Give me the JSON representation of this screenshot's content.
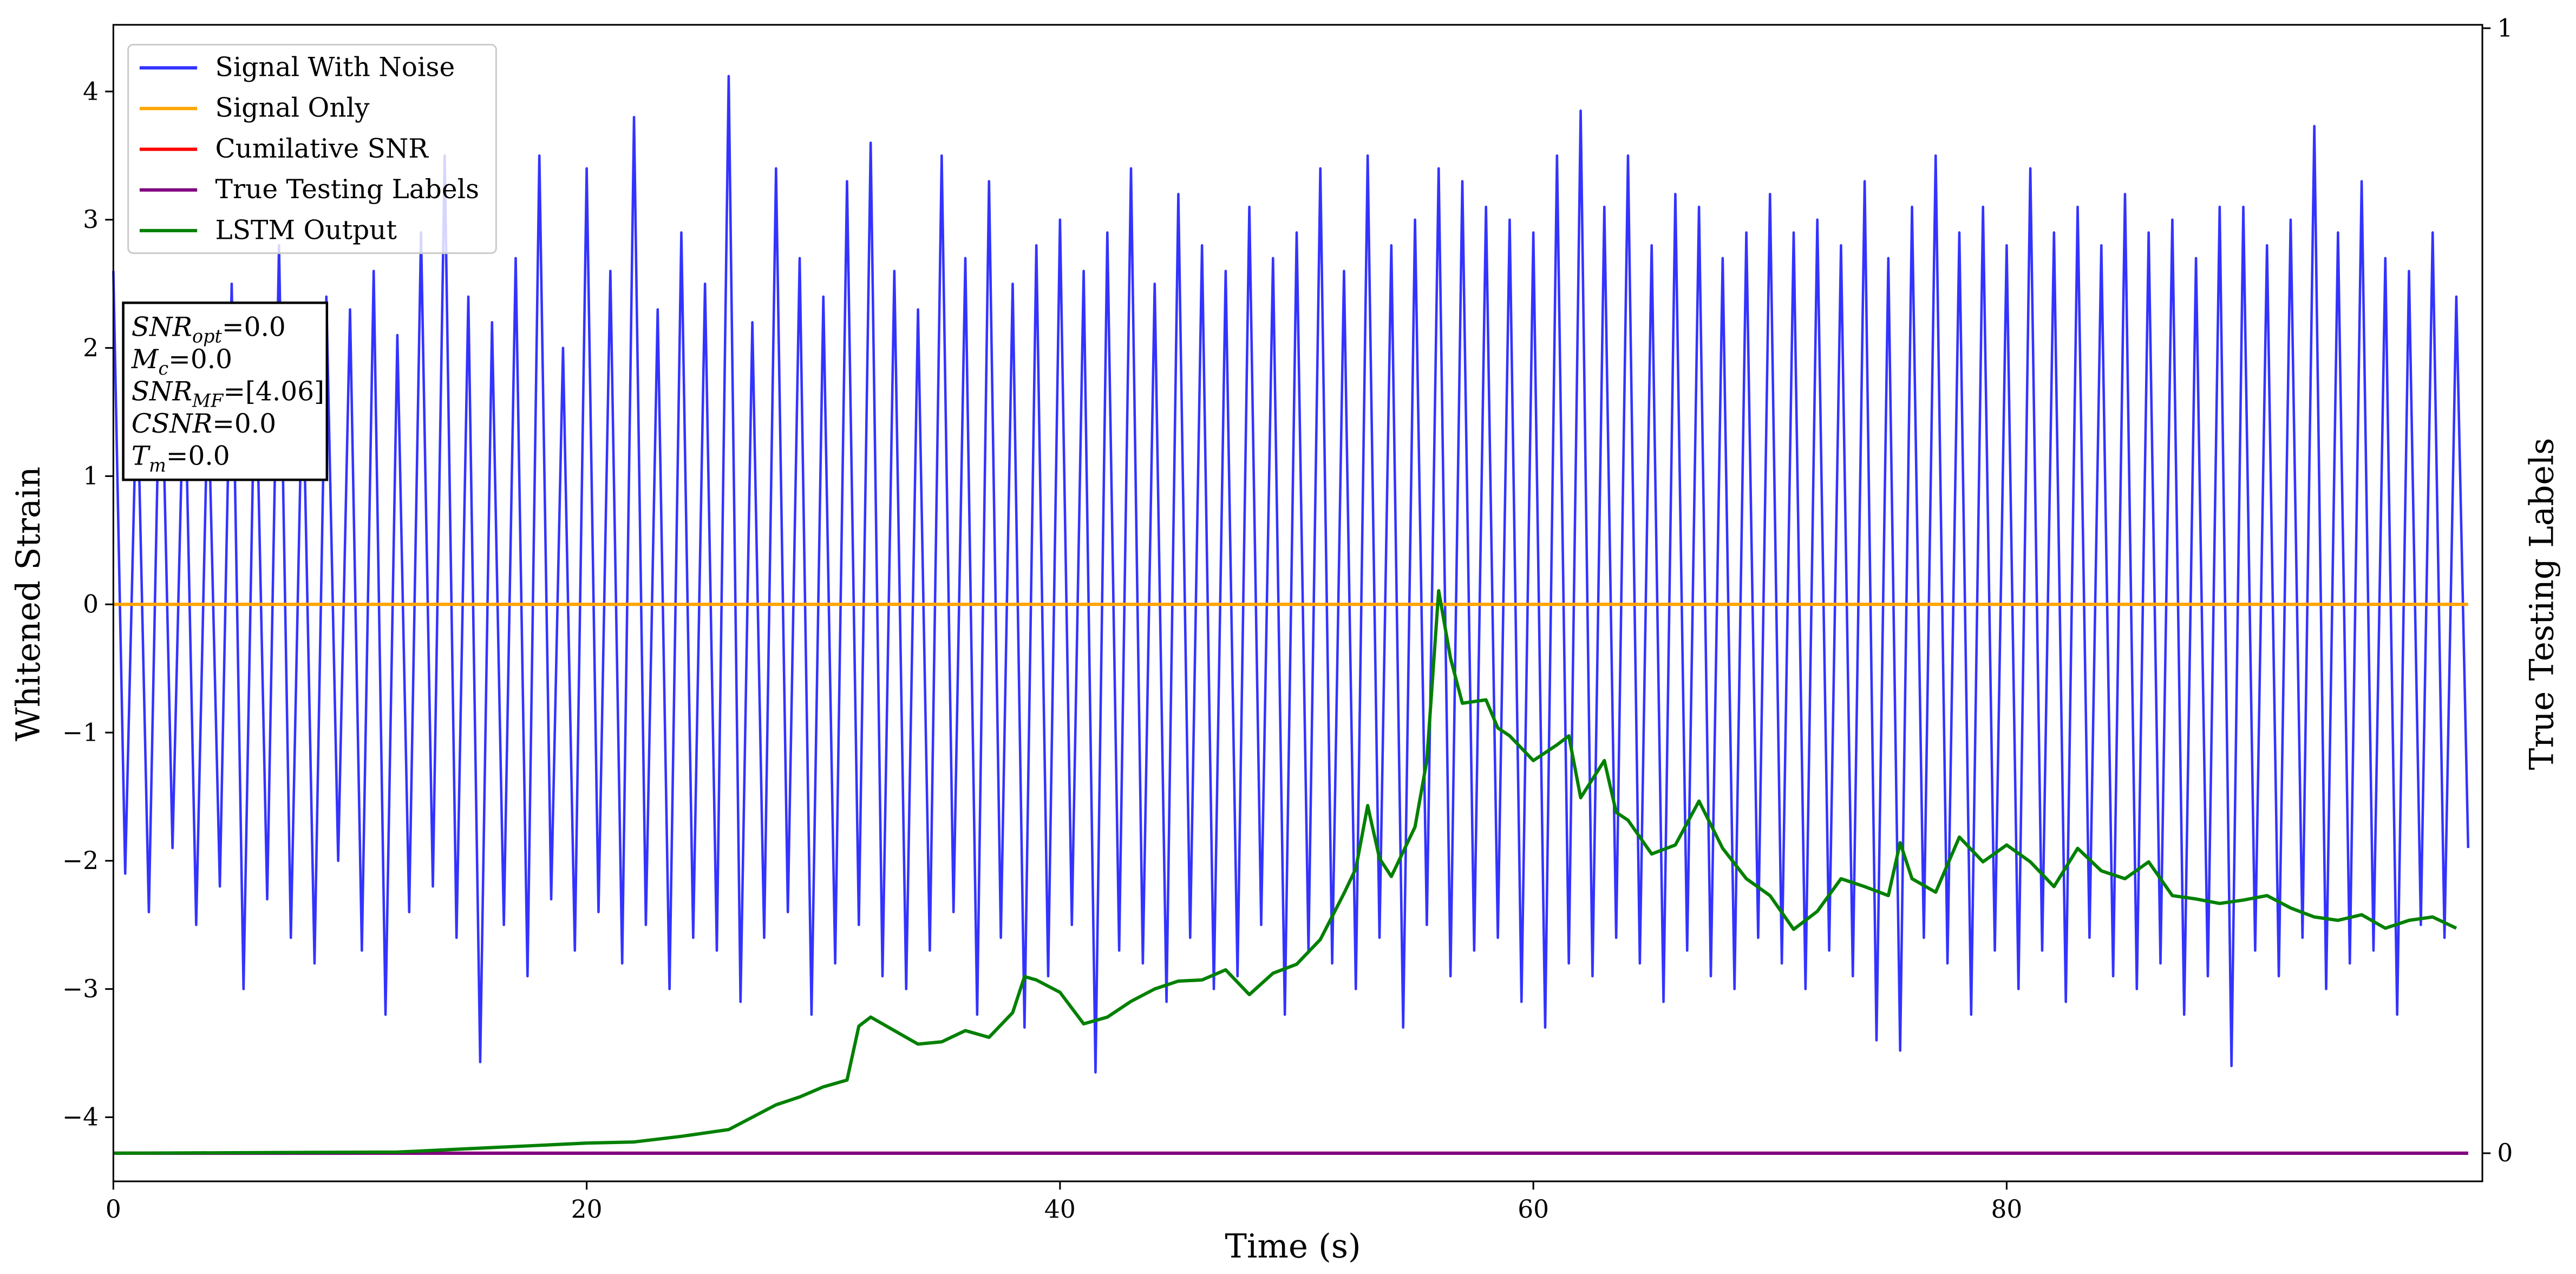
{
  "chart_data": {
    "type": "line",
    "xlabel": "Time (s)",
    "ylabel": "Whitened Strain",
    "y2label": "True Testing Labels",
    "xlim": [
      0,
      100.1
    ],
    "ylim": [
      -4.5,
      4.52
    ],
    "y2lim": [
      -0.025,
      1.003
    ],
    "xticks": [
      0,
      20,
      40,
      60,
      80
    ],
    "yticks": [
      {
        "value": -4,
        "label": "−4"
      },
      {
        "value": -3,
        "label": "−3"
      },
      {
        "value": -2,
        "label": "−2"
      },
      {
        "value": -1,
        "label": "−1"
      },
      0,
      1,
      2,
      3,
      4
    ],
    "y2ticks": [
      0,
      1
    ],
    "legend": "upper left",
    "annotation": [
      {
        "main": "SNR",
        "sub": "opt",
        "rest": "=0.0"
      },
      {
        "main": "M",
        "sub": "c",
        "rest": "=0.0"
      },
      {
        "main": "SNR",
        "sub": "MF",
        "rest": "=[4.06]"
      },
      {
        "main": "CSNR",
        "rest": "=0.0"
      },
      {
        "main": "T",
        "sub": "m",
        "rest": "=0.0"
      }
    ],
    "series": [
      {
        "name": "Signal With Noise",
        "color": "#3333ff",
        "x": [
          0,
          0.5,
          1,
          1.5,
          2,
          2.5,
          3,
          3.5,
          4,
          4.5,
          5,
          5.5,
          6,
          6.5,
          7,
          7.5,
          8,
          8.5,
          9,
          9.5,
          10,
          10.5,
          11,
          11.5,
          12,
          12.5,
          13,
          13.5,
          14,
          14.5,
          15,
          15.5,
          16,
          16.5,
          17,
          17.5,
          18,
          18.5,
          19,
          19.5,
          20,
          20.5,
          21,
          21.5,
          22,
          22.5,
          23,
          23.5,
          24,
          24.5,
          25,
          25.5,
          26,
          26.5,
          27,
          27.5,
          28,
          28.5,
          29,
          29.5,
          30,
          30.5,
          31,
          31.5,
          32,
          32.5,
          33,
          33.5,
          34,
          34.5,
          35,
          35.5,
          36,
          36.5,
          37,
          37.5,
          38,
          38.5,
          39,
          39.5,
          40,
          40.5,
          41,
          41.5,
          42,
          42.5,
          43,
          43.5,
          44,
          44.5,
          45,
          45.5,
          46,
          46.5,
          47,
          47.5,
          48,
          48.5,
          49,
          49.5,
          50,
          50.5,
          51,
          51.5,
          52,
          52.5,
          53,
          53.5,
          54,
          54.5,
          55,
          55.5,
          56,
          56.5,
          57,
          57.5,
          58,
          58.5,
          59,
          59.5,
          60,
          60.5,
          61,
          61.5,
          62,
          62.5,
          63,
          63.5,
          64,
          64.5,
          65,
          65.5,
          66,
          66.5,
          67,
          67.5,
          68,
          68.5,
          69,
          69.5,
          70,
          70.5,
          71,
          71.5,
          72,
          72.5,
          73,
          73.5,
          74,
          74.5,
          75,
          75.5,
          76,
          76.5,
          77,
          77.5,
          78,
          78.5,
          79,
          79.5,
          80,
          80.5,
          81,
          81.5,
          82,
          82.5,
          83,
          83.5,
          84,
          84.5,
          85,
          85.5,
          86,
          86.5,
          87,
          87.5,
          88,
          88.5,
          89,
          89.5,
          90,
          90.5,
          91,
          91.5,
          92,
          92.5,
          93,
          93.5,
          94,
          94.5,
          95,
          95.5,
          96,
          96.5,
          97,
          97.5,
          98,
          98.5,
          99,
          99.5
        ],
        "values": [
          2.6,
          -2.1,
          1.8,
          -2.4,
          2.3,
          -1.9,
          2.0,
          -2.5,
          1.7,
          -2.2,
          2.5,
          -3.0,
          2.1,
          -2.3,
          2.8,
          -2.6,
          1.9,
          -2.8,
          2.4,
          -2.0,
          2.3,
          -2.7,
          2.6,
          -3.2,
          2.1,
          -2.4,
          2.9,
          -2.2,
          3.5,
          -2.6,
          2.4,
          -3.57,
          2.2,
          -2.5,
          2.7,
          -2.9,
          3.5,
          -2.3,
          2.0,
          -2.7,
          3.4,
          -2.4,
          2.6,
          -2.8,
          3.8,
          -2.5,
          2.3,
          -3.0,
          2.9,
          -2.6,
          2.5,
          -2.7,
          4.12,
          -3.1,
          2.2,
          -2.6,
          3.4,
          -2.4,
          2.7,
          -3.2,
          2.4,
          -2.8,
          3.3,
          -2.5,
          3.6,
          -2.9,
          2.6,
          -3.0,
          2.3,
          -2.7,
          3.5,
          -2.4,
          2.7,
          -3.2,
          3.3,
          -2.6,
          2.5,
          -3.3,
          2.8,
          -2.9,
          3.0,
          -2.5,
          2.6,
          -3.65,
          2.9,
          -2.7,
          3.4,
          -2.8,
          2.5,
          -3.1,
          3.2,
          -2.6,
          2.8,
          -3.0,
          2.6,
          -2.9,
          3.1,
          -2.5,
          2.7,
          -3.2,
          2.9,
          -2.7,
          3.4,
          -2.8,
          2.6,
          -3.0,
          3.5,
          -2.6,
          2.8,
          -3.3,
          3.0,
          -2.5,
          3.4,
          -2.9,
          3.3,
          -2.7,
          3.1,
          -2.6,
          3.0,
          -3.1,
          2.9,
          -3.3,
          3.5,
          -2.8,
          3.85,
          -2.9,
          3.1,
          -2.6,
          3.5,
          -2.8,
          2.8,
          -3.1,
          3.2,
          -2.7,
          3.1,
          -2.9,
          2.7,
          -3.0,
          2.9,
          -2.6,
          3.2,
          -2.8,
          2.9,
          -3.0,
          3.0,
          -2.7,
          2.8,
          -2.9,
          3.3,
          -3.4,
          2.7,
          -3.48,
          3.1,
          -2.6,
          3.5,
          -2.8,
          2.9,
          -3.2,
          3.1,
          -2.7,
          2.8,
          -3.0,
          3.4,
          -2.7,
          2.9,
          -3.1,
          3.1,
          -2.6,
          2.8,
          -2.9,
          3.2,
          -3.0,
          2.9,
          -2.8,
          3.0,
          -3.2,
          2.7,
          -2.9,
          3.1,
          -3.6,
          3.1,
          -2.7,
          2.8,
          -2.9,
          3.0,
          -2.6,
          3.73,
          -3.0,
          2.9,
          -2.8,
          3.3,
          -2.7,
          2.7,
          -3.2,
          2.6,
          -2.5,
          2.9,
          -2.6,
          2.4,
          -1.9
        ]
      },
      {
        "name": "Signal Only",
        "color": "#ffa500",
        "x": [
          0,
          99.5
        ],
        "values": [
          0,
          0
        ]
      },
      {
        "name": "Cumilative SNR",
        "color": "#ff0000",
        "axis": "y2",
        "x": [
          0,
          99.5
        ],
        "values": [
          0,
          0
        ]
      },
      {
        "name": "True Testing Labels",
        "color": "#800080",
        "axis": "y2",
        "x": [
          0,
          99.5
        ],
        "values": [
          0,
          0
        ]
      },
      {
        "name": "LSTM Output",
        "color": "#008000",
        "axis": "y2",
        "x": [
          0,
          12,
          15,
          18,
          20,
          22,
          24,
          26,
          27,
          28,
          29,
          30,
          31,
          31.5,
          32,
          33,
          34,
          35,
          36,
          37,
          38,
          38.5,
          39,
          40,
          41,
          42,
          43,
          44,
          45,
          46,
          47,
          48,
          49,
          50,
          51,
          52,
          52.5,
          53,
          53.5,
          54,
          55,
          55.5,
          56,
          56.5,
          57,
          58,
          58.5,
          59,
          60,
          61,
          61.5,
          62,
          63,
          63.5,
          64,
          65,
          66,
          67,
          68,
          69,
          70,
          71,
          72,
          73,
          74,
          75,
          75.5,
          76,
          77,
          78,
          79,
          80,
          81,
          82,
          83,
          84,
          85,
          86,
          87,
          88,
          89,
          90,
          91,
          92,
          93,
          94,
          95,
          96,
          97,
          98,
          99
        ],
        "values": [
          0,
          0.001,
          0.004,
          0.007,
          0.009,
          0.01,
          0.015,
          0.021,
          0.032,
          0.043,
          0.05,
          0.059,
          0.065,
          0.113,
          0.121,
          0.109,
          0.097,
          0.099,
          0.109,
          0.103,
          0.125,
          0.157,
          0.154,
          0.143,
          0.115,
          0.121,
          0.135,
          0.146,
          0.153,
          0.154,
          0.163,
          0.141,
          0.16,
          0.168,
          0.19,
          0.231,
          0.253,
          0.309,
          0.262,
          0.246,
          0.29,
          0.349,
          0.5,
          0.44,
          0.4,
          0.403,
          0.378,
          0.371,
          0.349,
          0.363,
          0.371,
          0.316,
          0.349,
          0.303,
          0.296,
          0.266,
          0.274,
          0.313,
          0.271,
          0.244,
          0.229,
          0.199,
          0.215,
          0.244,
          0.237,
          0.229,
          0.276,
          0.244,
          0.232,
          0.281,
          0.259,
          0.274,
          0.259,
          0.237,
          0.271,
          0.251,
          0.244,
          0.259,
          0.229,
          0.226,
          0.222,
          0.225,
          0.229,
          0.218,
          0.21,
          0.207,
          0.212,
          0.2,
          0.207,
          0.21,
          0.2
        ]
      }
    ]
  }
}
